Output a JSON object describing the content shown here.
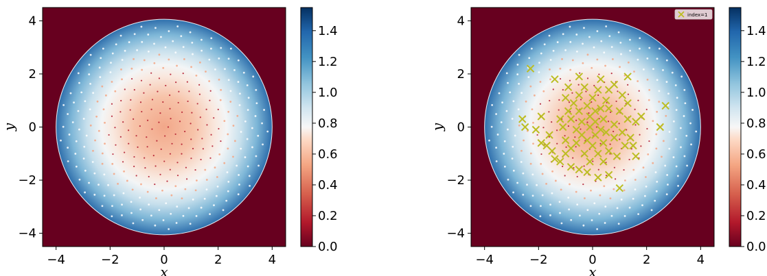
{
  "chart_data": [
    {
      "type": "heatmap",
      "title": "",
      "xlabel": "x",
      "ylabel": "y",
      "xlim": [
        -4.5,
        4.5
      ],
      "ylim": [
        -4.5,
        4.5
      ],
      "x_ticks": [
        -4,
        -2,
        0,
        2,
        4
      ],
      "y_ticks": [
        -4,
        -2,
        0,
        2,
        4
      ],
      "x_tick_labels": [
        "−4",
        "−2",
        "0",
        "2",
        "4"
      ],
      "y_tick_labels": [
        "−4",
        "−2",
        "0",
        "2",
        "4"
      ],
      "domain_radius": 4,
      "outside_value": 0.0,
      "field": "radial, ≈0.5 at center rising to ≈1.55 at r=4",
      "colormap": "RdBu",
      "colorbar": {
        "range": [
          0.0,
          1.55
        ],
        "ticks": [
          0.0,
          0.2,
          0.4,
          0.6,
          0.8,
          1.0,
          1.2,
          1.4
        ],
        "tick_labels": [
          "0.0",
          "0.2",
          "0.4",
          "0.6",
          "0.8",
          "1.0",
          "1.2",
          "1.4"
        ]
      },
      "grid": false
    },
    {
      "type": "heatmap",
      "title": "",
      "xlabel": "x",
      "ylabel": "y",
      "xlim": [
        -4.5,
        4.5
      ],
      "ylim": [
        -4.5,
        4.5
      ],
      "x_ticks": [
        -4,
        -2,
        0,
        2,
        4
      ],
      "y_ticks": [
        -4,
        -2,
        0,
        2,
        4
      ],
      "x_tick_labels": [
        "−4",
        "−2",
        "0",
        "2",
        "4"
      ],
      "y_tick_labels": [
        "−4",
        "−2",
        "0",
        "2",
        "4"
      ],
      "domain_radius": 4,
      "outside_value": 0.0,
      "colormap": "RdBu",
      "colorbar": {
        "range": [
          0.0,
          1.55
        ],
        "ticks": [
          0.0,
          0.2,
          0.4,
          0.6,
          0.8,
          1.0,
          1.2,
          1.4
        ],
        "tick_labels": [
          "0.0",
          "0.2",
          "0.4",
          "0.6",
          "0.8",
          "1.0",
          "1.2",
          "1.4"
        ]
      },
      "legend": {
        "position": "top-right",
        "entries": [
          {
            "label": "index=1",
            "marker": "x",
            "color": "#bcbd22"
          }
        ]
      },
      "grid": false,
      "series": [
        {
          "name": "index=1",
          "marker": "x",
          "color": "#bcbd22",
          "points": [
            [
              -2.3,
              2.2
            ],
            [
              -2.6,
              0.3
            ],
            [
              -2.5,
              0.0
            ],
            [
              -1.9,
              0.4
            ],
            [
              -2.1,
              -0.1
            ],
            [
              -1.9,
              -0.6
            ],
            [
              -1.7,
              -0.7
            ],
            [
              -1.4,
              1.8
            ],
            [
              -1.6,
              -0.3
            ],
            [
              -1.5,
              -0.9
            ],
            [
              -1.4,
              -1.2
            ],
            [
              -1.2,
              0.3
            ],
            [
              -1.2,
              -1.3
            ],
            [
              -1.1,
              0.0
            ],
            [
              -1.0,
              1.1
            ],
            [
              -1.0,
              -0.5
            ],
            [
              -1.0,
              -1.0
            ],
            [
              -0.9,
              1.5
            ],
            [
              -0.9,
              0.6
            ],
            [
              -0.8,
              -0.8
            ],
            [
              -0.8,
              0.3
            ],
            [
              -0.8,
              -1.5
            ],
            [
              -0.7,
              0.9
            ],
            [
              -0.6,
              -0.1
            ],
            [
              -0.6,
              -0.6
            ],
            [
              -0.5,
              1.9
            ],
            [
              -0.5,
              1.2
            ],
            [
              -0.5,
              0.6
            ],
            [
              -0.5,
              -1.6
            ],
            [
              -0.4,
              0.2
            ],
            [
              -0.4,
              -0.3
            ],
            [
              -0.3,
              -1.0
            ],
            [
              -0.3,
              1.5
            ],
            [
              -0.2,
              0.8
            ],
            [
              -0.2,
              -0.5
            ],
            [
              -0.2,
              -1.7
            ],
            [
              -0.1,
              0.0
            ],
            [
              -0.1,
              0.4
            ],
            [
              -0.1,
              -1.3
            ],
            [
              0.0,
              1.1
            ],
            [
              0.0,
              -0.7
            ],
            [
              0.1,
              0.6
            ],
            [
              0.1,
              0.2
            ],
            [
              0.1,
              -0.3
            ],
            [
              0.2,
              1.4
            ],
            [
              0.2,
              -1.0
            ],
            [
              0.2,
              -1.9
            ],
            [
              0.3,
              -0.1
            ],
            [
              0.3,
              0.7
            ],
            [
              0.3,
              1.8
            ],
            [
              0.4,
              0.3
            ],
            [
              0.4,
              -0.6
            ],
            [
              0.4,
              -1.3
            ],
            [
              0.5,
              1.0
            ],
            [
              0.5,
              -0.2
            ],
            [
              0.6,
              0.7
            ],
            [
              0.6,
              1.4
            ],
            [
              0.6,
              -0.9
            ],
            [
              0.6,
              -1.8
            ],
            [
              0.8,
              0.1
            ],
            [
              0.8,
              -0.4
            ],
            [
              0.8,
              1.6
            ],
            [
              0.9,
              -1.1
            ],
            [
              1.0,
              0.6
            ],
            [
              1.0,
              -2.3
            ],
            [
              1.1,
              1.2
            ],
            [
              1.1,
              -0.2
            ],
            [
              1.2,
              -0.7
            ],
            [
              1.3,
              1.9
            ],
            [
              1.3,
              0.9
            ],
            [
              1.3,
              0.3
            ],
            [
              1.4,
              -0.4
            ],
            [
              1.5,
              -0.7
            ],
            [
              1.6,
              0.2
            ],
            [
              1.6,
              -1.1
            ],
            [
              1.8,
              0.4
            ],
            [
              2.5,
              0.0
            ],
            [
              2.7,
              0.8
            ]
          ]
        }
      ]
    }
  ]
}
